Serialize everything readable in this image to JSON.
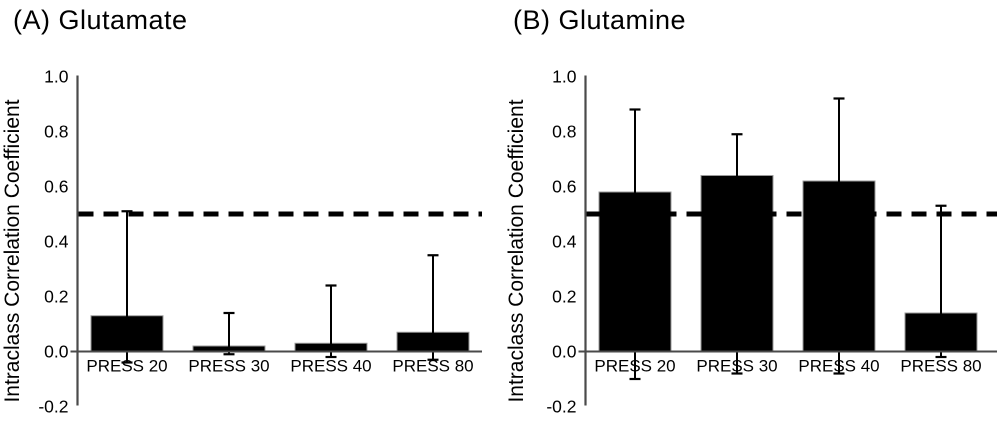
{
  "chart_data": [
    {
      "type": "bar",
      "panel": "A",
      "title": "(A) Glutamate",
      "ylabel": "Intraclass Correlation Coefficient",
      "xlabel": "",
      "categories": [
        "PRESS 20",
        "PRESS 30",
        "PRESS 40",
        "PRESS 80"
      ],
      "values": [
        0.13,
        0.02,
        0.03,
        0.07
      ],
      "error_upper": [
        0.51,
        0.14,
        0.24,
        0.35
      ],
      "error_lower": [
        -0.04,
        -0.01,
        -0.02,
        -0.03
      ],
      "reference_line_y": 0.5,
      "reference_line_style": "dashed",
      "ylim": [
        -0.2,
        1.0
      ],
      "ytick_labels": [
        "1.0",
        "0.8",
        "0.6",
        "0.4",
        "0.2",
        "0.0",
        "-0.2"
      ],
      "grid": false,
      "legend": "none",
      "bar_color": "#000000",
      "axis_color": "#4a4a4a"
    },
    {
      "type": "bar",
      "panel": "B",
      "title": "(B) Glutamine",
      "ylabel": "Intraclass Correlation Coefficient",
      "xlabel": "",
      "categories": [
        "PRESS 20",
        "PRESS 30",
        "PRESS 40",
        "PRESS 80"
      ],
      "values": [
        0.58,
        0.64,
        0.62,
        0.14
      ],
      "error_upper": [
        0.88,
        0.79,
        0.92,
        0.53
      ],
      "error_lower": [
        -0.1,
        -0.08,
        -0.08,
        -0.02
      ],
      "reference_line_y": 0.5,
      "reference_line_style": "dashed",
      "ylim": [
        -0.2,
        1.0
      ],
      "ytick_labels": [
        "1.0",
        "0.8",
        "0.6",
        "0.4",
        "0.2",
        "0.0",
        "-0.2"
      ],
      "grid": false,
      "legend": "none",
      "bar_color": "#000000",
      "axis_color": "#4a4a4a"
    }
  ]
}
